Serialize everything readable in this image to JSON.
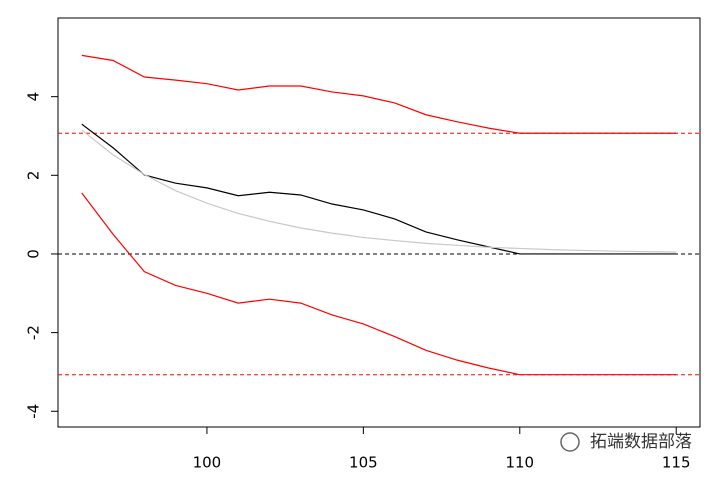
{
  "chart_data": {
    "type": "line",
    "x": [
      96,
      97,
      98,
      99,
      100,
      101,
      102,
      103,
      104,
      105,
      106,
      107,
      108,
      109,
      110,
      111,
      112,
      113,
      114,
      115
    ],
    "series": [
      {
        "color": "#ff0000",
        "values": [
          5.05,
          4.92,
          4.5,
          4.42,
          4.33,
          4.17,
          4.27,
          4.27,
          4.12,
          4.02,
          3.84,
          3.54,
          3.36,
          3.2,
          3.07,
          3.07,
          3.07,
          3.07,
          3.07,
          3.07
        ]
      },
      {
        "color": "#000000",
        "values": [
          3.3,
          2.7,
          2.01,
          1.8,
          1.68,
          1.48,
          1.57,
          1.5,
          1.27,
          1.12,
          0.89,
          0.56,
          0.36,
          0.18,
          0,
          0,
          0,
          0,
          0,
          0
        ]
      },
      {
        "color": "#c8c8c8",
        "values": [
          3.15,
          2.52,
          2.02,
          1.61,
          1.29,
          1.03,
          0.83,
          0.66,
          0.53,
          0.42,
          0.34,
          0.27,
          0.22,
          0.17,
          0.14,
          0.11,
          0.09,
          0.07,
          0.06,
          0.05
        ]
      },
      {
        "color": "#ff0000",
        "values": [
          1.55,
          0.5,
          -0.45,
          -0.8,
          -1.0,
          -1.25,
          -1.15,
          -1.25,
          -1.55,
          -1.78,
          -2.1,
          -2.45,
          -2.7,
          -2.9,
          -3.07,
          -3.07,
          -3.07,
          -3.07,
          -3.07,
          -3.07
        ]
      }
    ],
    "reference_lines": [
      {
        "value": 3.07,
        "color": "#ff0000"
      },
      {
        "value": 0,
        "color": "#000000"
      },
      {
        "value": -3.07,
        "color": "#ff0000"
      }
    ],
    "xlim": [
      95.24,
      115.76
    ],
    "ylim": [
      -4.4,
      6.0
    ],
    "xticks": [
      100,
      105,
      110,
      115
    ],
    "yticks": [
      -4,
      -2,
      0,
      2,
      4
    ],
    "watermark": "拓端数据部落"
  }
}
